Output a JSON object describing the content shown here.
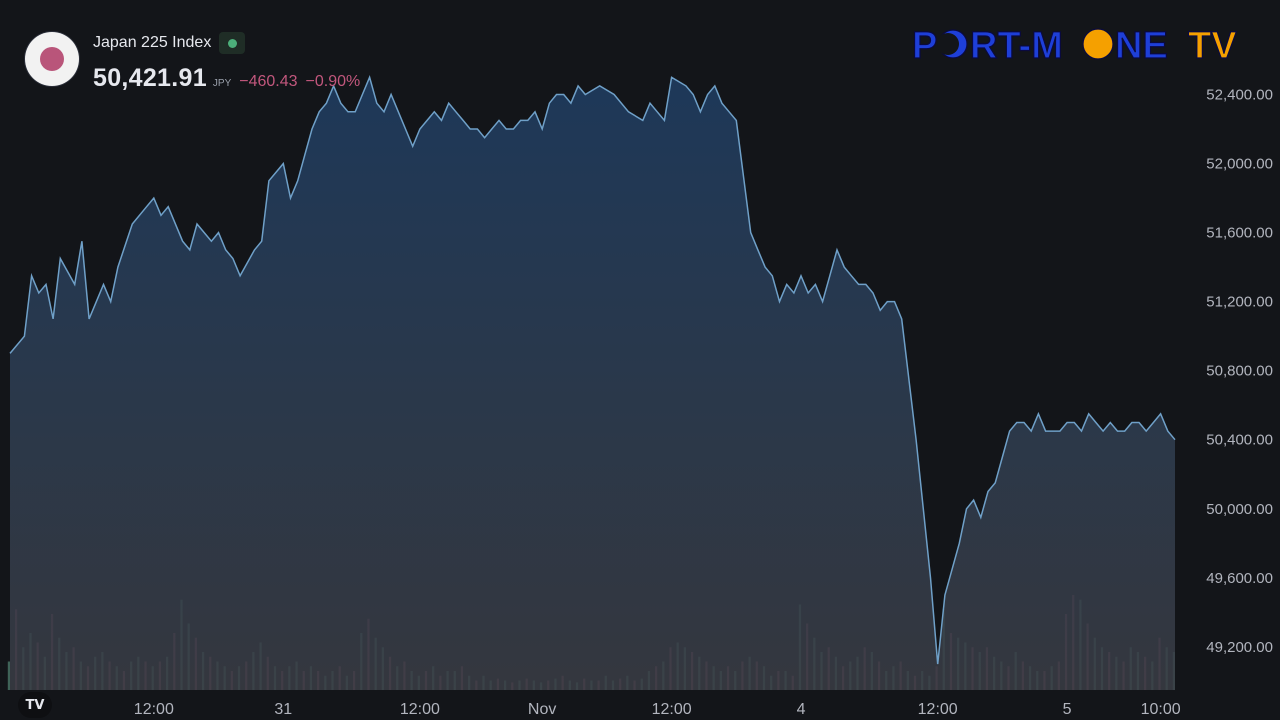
{
  "header": {
    "index_name": "Japan 225 Index",
    "price": "50,421.91",
    "currency": "JPY",
    "change": "−460.43",
    "change_pct": "−0.90%"
  },
  "logo": {
    "text_part1": "P",
    "text_part2": "RT-M",
    "text_part3": "NE",
    "text_part4": "TV",
    "colors": {
      "main": "#1e3fd8",
      "accent": "#f5a000"
    }
  },
  "colors": {
    "background": "#131519",
    "line": "#6fa0c8",
    "fill_top": "#1e3a5c",
    "fill_bottom": "#3a3d45",
    "text": "#b2b5be",
    "down": "#c2577d",
    "vol_up": "#4f7d6e",
    "vol_down": "#8a4a60"
  },
  "chart_data": {
    "type": "area",
    "title": "",
    "xlabel": "",
    "ylabel": "",
    "ylim": [
      48950,
      52600
    ],
    "y_ticks": [
      52400,
      52000,
      51600,
      51200,
      50800,
      50400,
      50000,
      49600,
      49200
    ],
    "y_tick_labels": [
      "52,400.00",
      "52,000.00",
      "51,600.00",
      "51,200.00",
      "50,800.00",
      "50,400.00",
      "50,000.00",
      "49,600.00",
      "49,200.00"
    ],
    "x_range": [
      0,
      162
    ],
    "x_ticks": [
      20,
      38,
      57,
      74,
      92,
      110,
      129,
      147,
      160
    ],
    "x_tick_labels": [
      "12:00",
      "31",
      "12:00",
      "Nov",
      "12:00",
      "4",
      "12:00",
      "5",
      "10:00"
    ],
    "series": [
      {
        "x": [
          0,
          2,
          3,
          4,
          5,
          6,
          7,
          9,
          10,
          11,
          13,
          14,
          15,
          17,
          19,
          20,
          21,
          22,
          24,
          25,
          26,
          27,
          28,
          29,
          30,
          31,
          32,
          34,
          35,
          36,
          38,
          39,
          40,
          41,
          42,
          43,
          44,
          45,
          46,
          47,
          48,
          49,
          50,
          51,
          52,
          53,
          55,
          56,
          57,
          58,
          59,
          60,
          61,
          62,
          63,
          64,
          65,
          66,
          67,
          68,
          69,
          70,
          71,
          72,
          73,
          74,
          75,
          76,
          77,
          78,
          79,
          80,
          82,
          84,
          86,
          88,
          89,
          90,
          91,
          92,
          94,
          95,
          96,
          97,
          98,
          99,
          100,
          101,
          103,
          104,
          105,
          106,
          107,
          108,
          109,
          110,
          111,
          112,
          113,
          114,
          115,
          116,
          117,
          118,
          119,
          120,
          121,
          122,
          123,
          124,
          126,
          127,
          128,
          129,
          130,
          132,
          133,
          134,
          135,
          136,
          137,
          138,
          139,
          140,
          141,
          142,
          143,
          144,
          145,
          146,
          147,
          148,
          149,
          150,
          151,
          152,
          153,
          154,
          155,
          156,
          157,
          158,
          159,
          160,
          161,
          162
        ],
        "values": [
          50900,
          51000,
          51350,
          51250,
          51300,
          51100,
          51450,
          51300,
          51550,
          51100,
          51300,
          51200,
          51400,
          51650,
          51750,
          51800,
          51700,
          51750,
          51550,
          51500,
          51650,
          51600,
          51550,
          51600,
          51500,
          51450,
          51350,
          51500,
          51550,
          51900,
          52000,
          51800,
          51900,
          52050,
          52200,
          52300,
          52350,
          52450,
          52350,
          52300,
          52300,
          52400,
          52500,
          52350,
          52300,
          52400,
          52200,
          52100,
          52200,
          52250,
          52300,
          52250,
          52350,
          52300,
          52250,
          52200,
          52200,
          52150,
          52200,
          52250,
          52200,
          52200,
          52250,
          52250,
          52300,
          52200,
          52350,
          52400,
          52400,
          52350,
          52450,
          52400,
          52450,
          52400,
          52300,
          52250,
          52350,
          52300,
          52250,
          52500,
          52450,
          52400,
          52300,
          52400,
          52450,
          52350,
          52300,
          52250,
          51600,
          51500,
          51400,
          51350,
          51200,
          51300,
          51250,
          51350,
          51250,
          51300,
          51200,
          51350,
          51500,
          51400,
          51350,
          51300,
          51300,
          51250,
          51150,
          51200,
          51200,
          51100,
          50400,
          50000,
          49600,
          49100,
          49500,
          49800,
          50000,
          50050,
          49950,
          50100,
          50150,
          50300,
          50450,
          50500,
          50500,
          50450,
          50550,
          50450,
          50450,
          50450,
          50500,
          50500,
          50450,
          50550,
          50500,
          50450,
          50500,
          50450,
          50450,
          50500,
          50500,
          50450,
          50500,
          50550,
          50450,
          50400
        ]
      }
    ]
  },
  "volume_data": {
    "note_max": 100,
    "x": [
      0,
      1,
      2,
      3,
      4,
      5,
      6,
      7,
      8,
      9,
      10,
      11,
      12,
      13,
      14,
      15,
      16,
      17,
      18,
      19,
      20,
      21,
      22,
      23,
      24,
      25,
      26,
      27,
      28,
      29,
      30,
      31,
      32,
      33,
      34,
      35,
      36,
      37,
      38,
      39,
      40,
      41,
      42,
      43,
      44,
      45,
      46,
      47,
      48,
      49,
      50,
      51,
      52,
      53,
      54,
      55,
      56,
      57,
      58,
      59,
      60,
      61,
      62,
      63,
      64,
      65,
      66,
      67,
      68,
      69,
      70,
      71,
      72,
      73,
      74,
      75,
      76,
      77,
      78,
      79,
      80,
      81,
      82,
      83,
      84,
      85,
      86,
      87,
      88,
      89,
      90,
      91,
      92,
      93,
      94,
      95,
      96,
      97,
      98,
      99,
      100,
      101,
      102,
      103,
      104,
      105,
      106,
      107,
      108,
      109,
      110,
      111,
      112,
      113,
      114,
      115,
      116,
      117,
      118,
      119,
      120,
      121,
      122,
      123,
      124,
      125,
      126,
      127,
      128,
      129,
      130,
      131,
      132,
      133,
      134,
      135,
      136,
      137,
      138,
      139,
      140,
      141,
      142,
      143,
      144,
      145,
      146,
      147,
      148,
      149,
      150,
      151,
      152,
      153,
      154,
      155,
      156,
      157,
      158,
      159,
      160,
      161,
      162
    ],
    "values": [
      30,
      85,
      45,
      60,
      50,
      35,
      80,
      55,
      40,
      45,
      30,
      25,
      35,
      40,
      30,
      25,
      20,
      30,
      35,
      30,
      25,
      30,
      35,
      60,
      95,
      70,
      55,
      40,
      35,
      30,
      25,
      20,
      25,
      30,
      40,
      50,
      35,
      25,
      20,
      25,
      30,
      20,
      25,
      20,
      15,
      20,
      25,
      15,
      20,
      60,
      75,
      55,
      45,
      35,
      25,
      30,
      20,
      15,
      20,
      25,
      15,
      20,
      20,
      25,
      15,
      10,
      15,
      10,
      12,
      10,
      8,
      10,
      12,
      10,
      8,
      10,
      12,
      15,
      10,
      8,
      12,
      10,
      10,
      15,
      10,
      12,
      15,
      10,
      12,
      20,
      25,
      30,
      45,
      50,
      45,
      40,
      35,
      30,
      25,
      20,
      25,
      20,
      30,
      35,
      30,
      25,
      15,
      20,
      20,
      15,
      90,
      70,
      55,
      40,
      45,
      35,
      25,
      30,
      35,
      45,
      40,
      30,
      20,
      25,
      30,
      20,
      15,
      20,
      15,
      25,
      85,
      60,
      55,
      50,
      45,
      40,
      45,
      35,
      30,
      25,
      40,
      30,
      25,
      20,
      20,
      25,
      30,
      80,
      100,
      95,
      70,
      55,
      45,
      40,
      35,
      30,
      45,
      40,
      35,
      30,
      55,
      45,
      40
    ],
    "up": [
      1,
      0,
      1,
      1,
      0,
      1,
      0,
      1,
      1,
      0,
      1,
      0,
      1,
      1,
      0,
      1,
      0,
      1,
      1,
      0,
      1,
      0,
      1,
      0,
      1,
      1,
      0,
      1,
      0,
      1,
      1,
      0,
      1,
      0,
      1,
      1,
      0,
      1,
      0,
      1,
      1,
      0,
      1,
      0,
      1,
      1,
      0,
      1,
      0,
      1,
      0,
      1,
      1,
      0,
      1,
      0,
      1,
      1,
      0,
      1,
      0,
      1,
      1,
      0,
      1,
      0,
      1,
      1,
      0,
      1,
      0,
      1,
      0,
      1,
      1,
      0,
      1,
      0,
      1,
      1,
      0,
      1,
      0,
      1,
      1,
      0,
      1,
      0,
      1,
      1,
      0,
      1,
      0,
      1,
      1,
      0,
      1,
      0,
      1,
      1,
      0,
      1,
      0,
      1,
      0,
      1,
      1,
      0,
      1,
      0,
      1,
      0,
      1,
      1,
      0,
      1,
      0,
      1,
      1,
      0,
      1,
      0,
      1,
      1,
      0,
      1,
      0,
      1,
      1,
      0,
      1,
      0,
      1,
      1,
      0,
      1,
      0,
      1,
      1,
      0,
      1,
      0,
      1,
      1,
      0,
      1,
      0,
      0,
      0,
      1,
      0,
      1,
      1,
      0,
      1,
      0,
      1,
      1,
      0,
      1,
      0,
      1,
      1
    ]
  }
}
